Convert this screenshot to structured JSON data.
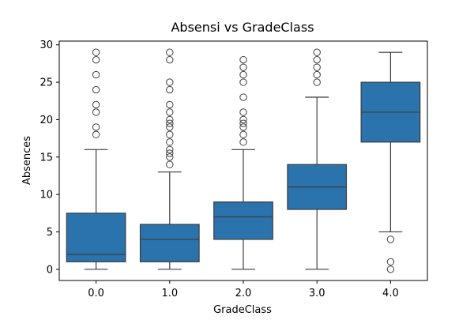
{
  "chart_data": {
    "type": "box",
    "title": "Absensi vs GradeClass",
    "xlabel": "GradeClass",
    "ylabel": "Absences",
    "categories": [
      "0.0",
      "1.0",
      "2.0",
      "3.0",
      "4.0"
    ],
    "ylim": [
      -1.5,
      30.5
    ],
    "yticks": [
      0,
      5,
      10,
      15,
      20,
      25,
      30
    ],
    "grid": false,
    "box_color": "#2b73ad",
    "edge_color": "#3d3d3d",
    "boxes": [
      {
        "category": "0.0",
        "q1": 1,
        "median": 2,
        "q3": 7.5,
        "whisker_low": 0,
        "whisker_high": 16,
        "outliers": [
          18,
          19,
          21,
          22,
          24,
          26,
          28,
          29
        ]
      },
      {
        "category": "1.0",
        "q1": 1,
        "median": 4,
        "q3": 6,
        "whisker_low": 0,
        "whisker_high": 13,
        "outliers": [
          14,
          15,
          15.5,
          16,
          17,
          18,
          19,
          19.5,
          20,
          21,
          22,
          24,
          25,
          28,
          29
        ]
      },
      {
        "category": "2.0",
        "q1": 4,
        "median": 7,
        "q3": 9,
        "whisker_low": 0,
        "whisker_high": 16,
        "outliers": [
          17,
          18,
          19,
          19.5,
          20,
          21,
          23,
          25,
          26,
          27,
          28
        ]
      },
      {
        "category": "3.0",
        "q1": 8,
        "median": 11,
        "q3": 14,
        "whisker_low": 0,
        "whisker_high": 23,
        "outliers": [
          25,
          26,
          27,
          28,
          29
        ]
      },
      {
        "category": "4.0",
        "q1": 17,
        "median": 21,
        "q3": 25,
        "whisker_low": 5,
        "whisker_high": 29,
        "outliers": [
          0,
          1,
          4
        ]
      }
    ]
  }
}
